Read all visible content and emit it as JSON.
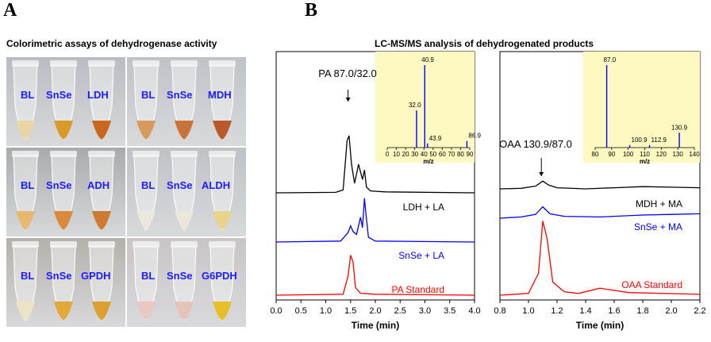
{
  "panels": {
    "a": "A",
    "b": "B"
  },
  "captions": {
    "left": "Colorimetric  assays of dehydrogenase activity",
    "right": "LC-MS/MS analysis  of dehydrogenated products"
  },
  "photos": [
    {
      "labels": [
        "BL",
        "SnSe",
        "LDH"
      ],
      "bg": "#b9bcc1",
      "liquids": [
        "#e9d4a2",
        "#d99a2a",
        "#c9681d"
      ]
    },
    {
      "labels": [
        "BL",
        "SnSe",
        "MDH"
      ],
      "bg": "#c0c2c6",
      "liquids": [
        "#d79a5a",
        "#c8733a",
        "#b85a2a"
      ]
    },
    {
      "labels": [
        "BL",
        "SnSe",
        "ADH"
      ],
      "bg": "#a9aaac",
      "liquids": [
        "#e5b970",
        "#d98a3c",
        "#cf7a30"
      ]
    },
    {
      "labels": [
        "BL",
        "SnSe",
        "ALDH"
      ],
      "bg": "#bfc1c4",
      "liquids": [
        "#ece7dc",
        "#ebe5da",
        "#e7d48a"
      ]
    },
    {
      "labels": [
        "BL",
        "SnSe",
        "GPDH"
      ],
      "bg": "#b4b0ab",
      "liquids": [
        "#ede3c7",
        "#e1a83a",
        "#dca032"
      ]
    },
    {
      "labels": [
        "BL",
        "SnSe",
        "G6PDH"
      ],
      "bg": "#c9c5c7",
      "liquids": [
        "#e8c8c0",
        "#e6c2b8",
        "#e6be26"
      ]
    }
  ],
  "chart_data": [
    {
      "type": "line",
      "xlabel": "Time (min)",
      "xlim": [
        0.0,
        4.0
      ],
      "xticks": [
        "0.0",
        "0.5",
        "1.0",
        "1.5",
        "2.0",
        "2.5",
        "3.0",
        "3.5",
        "4.0"
      ],
      "annotation": "PA 87.0/32.0",
      "series": [
        {
          "name": "LDH + LA",
          "color": "#000000",
          "points": [
            [
              0,
              0
            ],
            [
              1.2,
              0.5
            ],
            [
              1.35,
              3
            ],
            [
              1.43,
              55
            ],
            [
              1.47,
              60
            ],
            [
              1.52,
              30
            ],
            [
              1.58,
              10
            ],
            [
              1.63,
              22
            ],
            [
              1.66,
              30
            ],
            [
              1.7,
              22
            ],
            [
              1.74,
              14
            ],
            [
              1.78,
              24
            ],
            [
              1.82,
              6
            ],
            [
              1.9,
              2
            ],
            [
              2.2,
              1
            ],
            [
              4.0,
              0
            ]
          ]
        },
        {
          "name": "SnSe + LA",
          "color": "#0000ff",
          "points": [
            [
              0,
              0
            ],
            [
              1.3,
              1
            ],
            [
              1.45,
              10
            ],
            [
              1.5,
              17
            ],
            [
              1.55,
              11
            ],
            [
              1.62,
              8
            ],
            [
              1.7,
              26
            ],
            [
              1.74,
              15
            ],
            [
              1.78,
              46
            ],
            [
              1.81,
              30
            ],
            [
              1.86,
              5
            ],
            [
              2.0,
              1
            ],
            [
              4.0,
              0
            ]
          ]
        },
        {
          "name": "PA Standard",
          "color": "#ff0000",
          "points": [
            [
              0,
              0
            ],
            [
              1.35,
              1
            ],
            [
              1.45,
              20
            ],
            [
              1.5,
              42
            ],
            [
              1.55,
              35
            ],
            [
              1.6,
              8
            ],
            [
              1.7,
              2
            ],
            [
              2.0,
              1
            ],
            [
              4.0,
              0
            ]
          ]
        }
      ]
    },
    {
      "type": "line",
      "xlabel": "Time (min)",
      "xlim": [
        0.8,
        2.2
      ],
      "xticks": [
        "0.8",
        "1.0",
        "1.2",
        "1.4",
        "1.6",
        "1.8",
        "2.0",
        "2.2"
      ],
      "annotation": "OAA 130.9/87.0",
      "series": [
        {
          "name": "MDH + MA",
          "color": "#000000",
          "points": [
            [
              0.8,
              0
            ],
            [
              0.95,
              1
            ],
            [
              1.0,
              3
            ],
            [
              1.05,
              5
            ],
            [
              1.1,
              14
            ],
            [
              1.14,
              7
            ],
            [
              1.2,
              2
            ],
            [
              1.4,
              0
            ],
            [
              1.6,
              2
            ],
            [
              1.8,
              4
            ],
            [
              2.0,
              3
            ],
            [
              2.2,
              2
            ]
          ]
        },
        {
          "name": "SnSe + MA",
          "color": "#0000ff",
          "points": [
            [
              0.8,
              0
            ],
            [
              0.95,
              2
            ],
            [
              1.05,
              6
            ],
            [
              1.1,
              18
            ],
            [
              1.15,
              7
            ],
            [
              1.25,
              3
            ],
            [
              1.5,
              2
            ],
            [
              1.8,
              5
            ],
            [
              2.0,
              6
            ],
            [
              2.2,
              7
            ]
          ]
        },
        {
          "name": "OAA Standard",
          "color": "#ff0000",
          "points": [
            [
              0.8,
              0
            ],
            [
              1.0,
              2
            ],
            [
              1.07,
              25
            ],
            [
              1.1,
              85
            ],
            [
              1.13,
              65
            ],
            [
              1.17,
              15
            ],
            [
              1.25,
              4
            ],
            [
              1.35,
              2
            ],
            [
              1.5,
              8
            ],
            [
              1.7,
              3
            ],
            [
              2.2,
              1
            ]
          ]
        }
      ]
    }
  ],
  "insets": [
    {
      "xlabel": "m/z",
      "xlim": [
        0,
        90
      ],
      "xticks": [
        "0",
        "10",
        "20",
        "30",
        "40",
        "50",
        "60",
        "70",
        "80",
        "90"
      ],
      "bg": "#fdf9c0",
      "peaks": [
        {
          "x": 32.0,
          "h": 0.45,
          "label": "32.0"
        },
        {
          "x": 40.9,
          "h": 1.0,
          "label": "40.9"
        },
        {
          "x": 43.9,
          "h": 0.05,
          "label": "43.9"
        },
        {
          "x": 86.9,
          "h": 0.08,
          "label": "86.9"
        }
      ]
    },
    {
      "xlabel": "m/z",
      "xlim": [
        80,
        140
      ],
      "xticks": [
        "80",
        "90",
        "100",
        "110",
        "120",
        "130",
        "140"
      ],
      "bg": "#fdf9c0",
      "peaks": [
        {
          "x": 87.0,
          "h": 1.0,
          "label": "87.0"
        },
        {
          "x": 100.9,
          "h": 0.03,
          "label": "100.9"
        },
        {
          "x": 112.9,
          "h": 0.03,
          "label": "112.9"
        },
        {
          "x": 130.9,
          "h": 0.18,
          "label": "130.9"
        }
      ]
    }
  ]
}
